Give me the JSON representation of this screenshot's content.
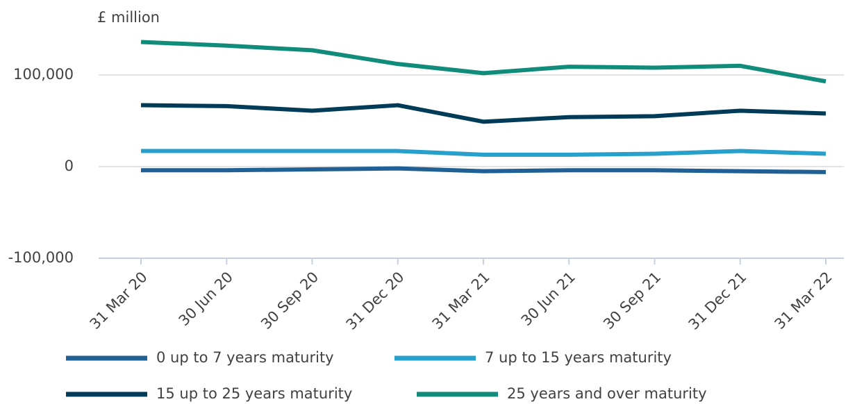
{
  "chart_data": {
    "type": "line",
    "y_label": "£ million",
    "categories": [
      "31 Mar 20",
      "30 Jun 20",
      "30 Sep 20",
      "31 Dec 20",
      "31 Mar 21",
      "30 Jun 21",
      "30 Sep 21",
      "31 Dec 21",
      "31 Mar 22"
    ],
    "series": [
      {
        "name": "0 up to 7 years maturity",
        "color": "#206095",
        "values": [
          -4000,
          -4000,
          -3000,
          -2000,
          -5000,
          -4000,
          -4000,
          -5000,
          -6000
        ]
      },
      {
        "name": "7 up to 15 years maturity",
        "color": "#27a0cc",
        "values": [
          17000,
          17000,
          17000,
          17000,
          13000,
          13000,
          14000,
          17000,
          14000
        ]
      },
      {
        "name": "15 up to 25 years maturity",
        "color": "#003c57",
        "values": [
          67000,
          66000,
          61000,
          67000,
          49000,
          54000,
          55000,
          61000,
          58000
        ]
      },
      {
        "name": "25 years and over maturity",
        "color": "#118c7b",
        "values": [
          136000,
          132000,
          127000,
          112000,
          102000,
          109000,
          108000,
          110000,
          93000
        ]
      }
    ],
    "ylim": [
      -100000,
      150000
    ],
    "yticks": [
      {
        "value": -100000,
        "label": "-100,000"
      },
      0,
      {
        "value": 100000,
        "label": "100,000"
      }
    ],
    "grid": true
  }
}
